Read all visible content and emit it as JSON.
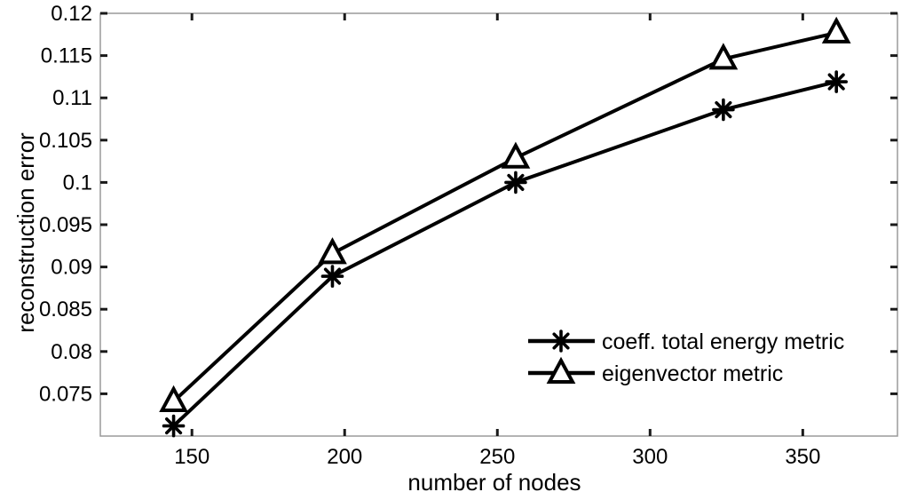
{
  "chart_data": {
    "type": "line",
    "title": "",
    "xlabel": "number of nodes",
    "ylabel": "reconstruction error",
    "xlim": [
      120,
      381
    ],
    "ylim": [
      0.07,
      0.12
    ],
    "xticks": [
      150,
      200,
      250,
      300,
      350
    ],
    "xtick_labels": [
      "150",
      "200",
      "250",
      "300",
      "350"
    ],
    "yticks": [
      0.075,
      0.08,
      0.085,
      0.09,
      0.095,
      0.1,
      0.105,
      0.11,
      0.115,
      0.12
    ],
    "ytick_labels": [
      "0.075",
      "0.08",
      "0.085",
      "0.09",
      "0.095",
      "0.1",
      "0.105",
      "0.11",
      "0.115",
      "0.12"
    ],
    "grid": false,
    "legend_position": "inside-lower-right",
    "x": [
      144,
      196,
      256,
      324,
      361
    ],
    "series": [
      {
        "name": "coeff. total energy metric",
        "marker": "asterisk",
        "color": "#000000",
        "values": [
          0.0712,
          0.0889,
          0.1,
          0.1086,
          0.1119
        ]
      },
      {
        "name": "eigenvector metric",
        "marker": "triangle",
        "color": "#000000",
        "values": [
          0.0741,
          0.0916,
          0.1029,
          0.1146,
          0.1177
        ]
      }
    ]
  },
  "colors": {
    "background": "#ffffff",
    "axis_box": "#9a9a9a",
    "tick": "#1a1a1a",
    "line": "#000000",
    "text": "#000000"
  }
}
